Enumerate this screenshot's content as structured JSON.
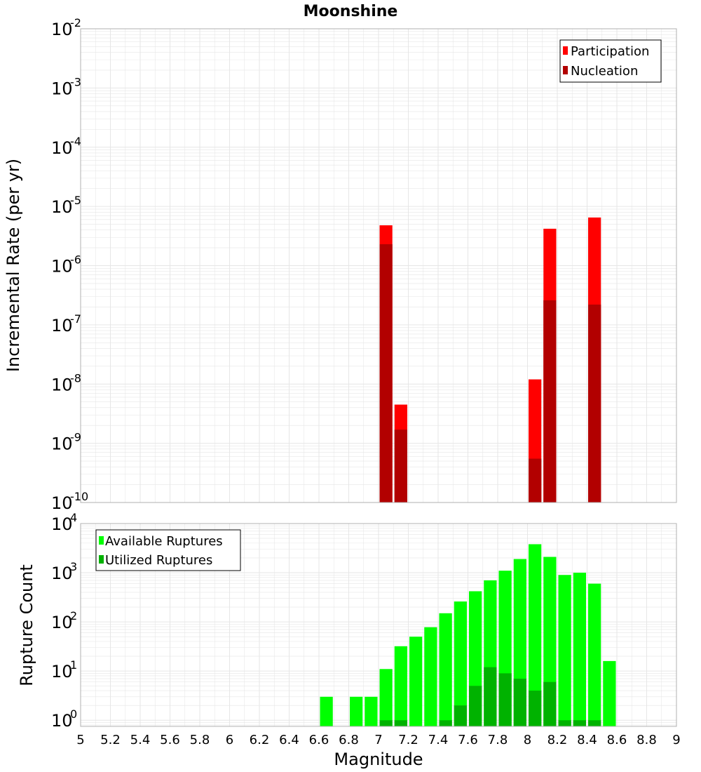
{
  "title": "Moonshine",
  "xlabel": "Magnitude",
  "x_ticks": [
    "5",
    "5.2",
    "5.4",
    "5.6",
    "5.8",
    "6",
    "6.2",
    "6.4",
    "6.6",
    "6.8",
    "7",
    "7.2",
    "7.4",
    "7.6",
    "7.8",
    "8",
    "8.2",
    "8.4",
    "8.6",
    "8.8",
    "9"
  ],
  "colors": {
    "participation": "#ff0000",
    "nucleation": "#b20000",
    "available": "#00ff00",
    "utilized": "#00b200",
    "grid": "#e6e6e6",
    "frame": "#b0b0b0"
  },
  "chart_data": [
    {
      "type": "bar",
      "ylabel": "Incremental Rate (per yr)",
      "xlim": [
        5,
        9
      ],
      "ylim": [
        1e-10,
        0.01
      ],
      "y_scale": "log",
      "y_ticks": [
        {
          "base": "10",
          "exp": "-10"
        },
        {
          "base": "10",
          "exp": "-9"
        },
        {
          "base": "10",
          "exp": "-8"
        },
        {
          "base": "10",
          "exp": "-7"
        },
        {
          "base": "10",
          "exp": "-6"
        },
        {
          "base": "10",
          "exp": "-5"
        },
        {
          "base": "10",
          "exp": "-4"
        },
        {
          "base": "10",
          "exp": "-3"
        },
        {
          "base": "10",
          "exp": "-2"
        }
      ],
      "legend": {
        "position": "top-right",
        "entries": [
          "Participation",
          "Nucleation"
        ]
      },
      "bin_width": 0.1,
      "series": [
        {
          "name": "Participation",
          "x": [
            7.05,
            7.15,
            8.05,
            8.15,
            8.45
          ],
          "values": [
            4.8e-06,
            4.5e-09,
            1.2e-08,
            4.2e-06,
            6.5e-06
          ]
        },
        {
          "name": "Nucleation",
          "x": [
            7.05,
            7.15,
            8.05,
            8.15,
            8.45
          ],
          "values": [
            2.3e-06,
            1.7e-09,
            5.5e-10,
            2.6e-07,
            2.2e-07
          ]
        }
      ]
    },
    {
      "type": "bar",
      "ylabel": "Rupture Count",
      "xlim": [
        5,
        9
      ],
      "ylim": [
        0.75,
        10000
      ],
      "y_scale": "log",
      "y_ticks": [
        {
          "base": "10",
          "exp": "0"
        },
        {
          "base": "10",
          "exp": "1"
        },
        {
          "base": "10",
          "exp": "2"
        },
        {
          "base": "10",
          "exp": "3"
        },
        {
          "base": "10",
          "exp": "4"
        }
      ],
      "legend": {
        "position": "top-left",
        "entries": [
          "Available Ruptures",
          "Utilized Ruptures"
        ]
      },
      "bin_width": 0.1,
      "series": [
        {
          "name": "Available Ruptures",
          "x": [
            6.65,
            6.85,
            6.95,
            7.05,
            7.15,
            7.25,
            7.35,
            7.45,
            7.55,
            7.65,
            7.75,
            7.85,
            7.95,
            8.05,
            8.15,
            8.25,
            8.35,
            8.45,
            8.55
          ],
          "values": [
            3,
            3,
            3,
            11,
            32,
            50,
            78,
            150,
            260,
            420,
            700,
            1100,
            1900,
            3800,
            2100,
            900,
            1000,
            600,
            16
          ]
        },
        {
          "name": "Utilized Ruptures",
          "x": [
            7.05,
            7.15,
            7.45,
            7.55,
            7.65,
            7.75,
            7.85,
            7.95,
            8.05,
            8.15,
            8.25,
            8.35,
            8.45
          ],
          "values": [
            1,
            1,
            1,
            2,
            5,
            12,
            9,
            7,
            4,
            6,
            1,
            1,
            1
          ]
        }
      ]
    }
  ]
}
